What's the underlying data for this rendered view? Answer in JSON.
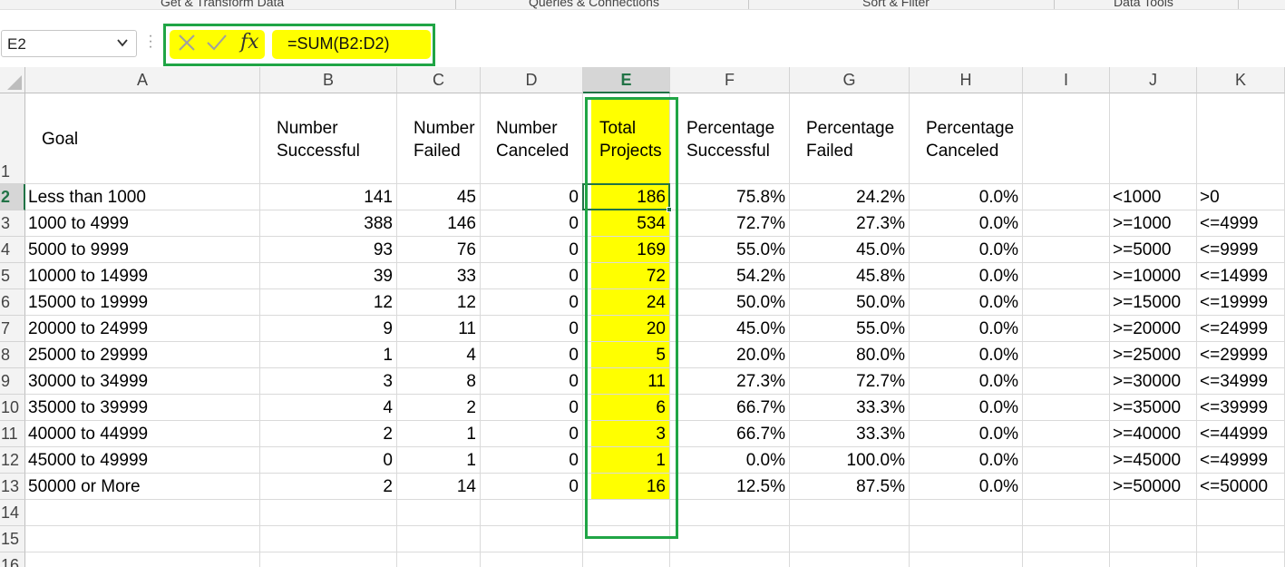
{
  "ribbon": {
    "groups": [
      "Get & Transform Data",
      "Queries & Connections",
      "Sort & Filter",
      "Data Tools"
    ]
  },
  "formula_bar": {
    "name_box": "E2",
    "chevron_icon": "chevron-down-icon",
    "cancel_icon": "cancel-x-icon",
    "enter_icon": "checkmark-icon",
    "fx_label": "fx",
    "formula": "=SUM(B2:D2)",
    "highlight_color": "#ffff00",
    "frame_color": "#20a545"
  },
  "grid": {
    "column_headers": [
      "A",
      "B",
      "C",
      "D",
      "E",
      "F",
      "G",
      "H",
      "I",
      "J",
      "K"
    ],
    "selected_column": "E",
    "row_headers": [
      "1",
      "2",
      "3",
      "4",
      "5",
      "6",
      "7",
      "8",
      "9",
      "10",
      "11",
      "12",
      "13",
      "14",
      "15",
      "16"
    ],
    "selected_row": "2",
    "header_row": {
      "A": "Goal",
      "B": "Number Successful",
      "C": "Number Failed",
      "D": "Number Canceled",
      "E": "Total Projects",
      "F": "Percentage Successful",
      "G": "Percentage Failed",
      "H": "Percentage Canceled"
    },
    "rows": [
      [
        "Less than 1000",
        "141",
        "45",
        "0",
        "186",
        "75.8%",
        "24.2%",
        "0.0%",
        "",
        "<1000",
        ">0"
      ],
      [
        "1000 to 4999",
        "388",
        "146",
        "0",
        "534",
        "72.7%",
        "27.3%",
        "0.0%",
        "",
        ">=1000",
        "<=4999"
      ],
      [
        "5000 to 9999",
        "93",
        "76",
        "0",
        "169",
        "55.0%",
        "45.0%",
        "0.0%",
        "",
        ">=5000",
        "<=9999"
      ],
      [
        "10000 to 14999",
        "39",
        "33",
        "0",
        "72",
        "54.2%",
        "45.8%",
        "0.0%",
        "",
        ">=10000",
        "<=14999"
      ],
      [
        "15000 to 19999",
        "12",
        "12",
        "0",
        "24",
        "50.0%",
        "50.0%",
        "0.0%",
        "",
        ">=15000",
        "<=19999"
      ],
      [
        "20000 to 24999",
        "9",
        "11",
        "0",
        "20",
        "45.0%",
        "55.0%",
        "0.0%",
        "",
        ">=20000",
        "<=24999"
      ],
      [
        "25000 to 29999",
        "1",
        "4",
        "0",
        "5",
        "20.0%",
        "80.0%",
        "0.0%",
        "",
        ">=25000",
        "<=29999"
      ],
      [
        "30000 to 34999",
        "3",
        "8",
        "0",
        "11",
        "27.3%",
        "72.7%",
        "0.0%",
        "",
        ">=30000",
        "<=34999"
      ],
      [
        "35000 to 39999",
        "4",
        "2",
        "0",
        "6",
        "66.7%",
        "33.3%",
        "0.0%",
        "",
        ">=35000",
        "<=39999"
      ],
      [
        "40000 to 44999",
        "2",
        "1",
        "0",
        "3",
        "66.7%",
        "33.3%",
        "0.0%",
        "",
        ">=40000",
        "<=44999"
      ],
      [
        "45000 to 49999",
        "0",
        "1",
        "0",
        "1",
        "0.0%",
        "100.0%",
        "0.0%",
        "",
        ">=45000",
        "<=49999"
      ],
      [
        "50000 or More",
        "2",
        "14",
        "0",
        "16",
        "12.5%",
        "87.5%",
        "0.0%",
        "",
        ">=50000",
        "<=50000"
      ]
    ]
  }
}
